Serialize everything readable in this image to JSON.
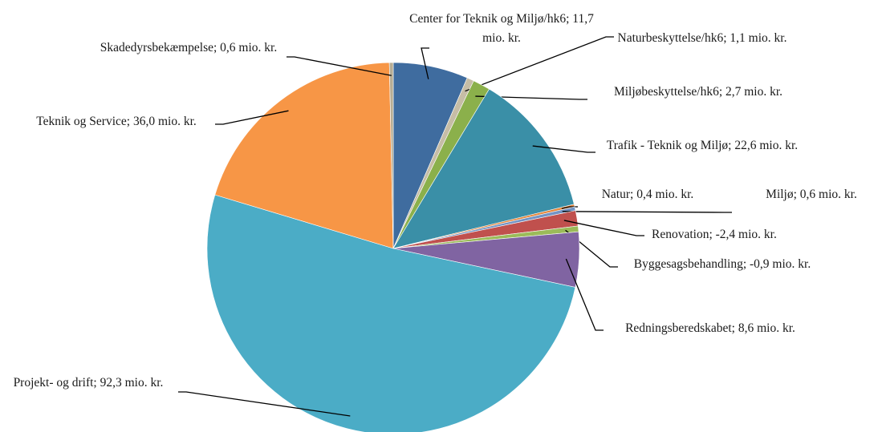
{
  "chart_data": {
    "type": "pie",
    "value_labels": [
      "Center for Teknik og Miljø/hk6; 11,7 mio. kr.",
      "Naturbeskyttelse/hk6; 1,1 mio. kr.",
      "Miljøbeskyttelse/hk6; 2,7 mio. kr.",
      "Trafik - Teknik og Miljø; 22,6 mio. kr.",
      "Natur; 0,4 mio. kr.",
      "Miljø; 0,6 mio. kr.",
      "Renovation; -2,4 mio. kr.",
      "Byggesagsbehandling; -0,9 mio. kr.",
      "Redningsberedskabet; 8,6 mio. kr.",
      "Projekt- og drift; 92,3 mio. kr.",
      "Teknik og Service; 36,0 mio. kr.",
      "Skadedyrsbekæmpelse; 0,6 mio. kr."
    ],
    "values": [
      11.7,
      1.1,
      2.7,
      22.6,
      0.4,
      0.6,
      -2.4,
      -0.9,
      8.6,
      92.3,
      36.0,
      0.6
    ],
    "colors": [
      "#3f6c9f",
      "#c6bda6",
      "#8bb04b",
      "#3a8fa7",
      "#e5873c",
      "#7394c4",
      "#c0504d",
      "#9bbb59",
      "#8064a2",
      "#4bacc6",
      "#f79646",
      "#b7ad94"
    ]
  }
}
